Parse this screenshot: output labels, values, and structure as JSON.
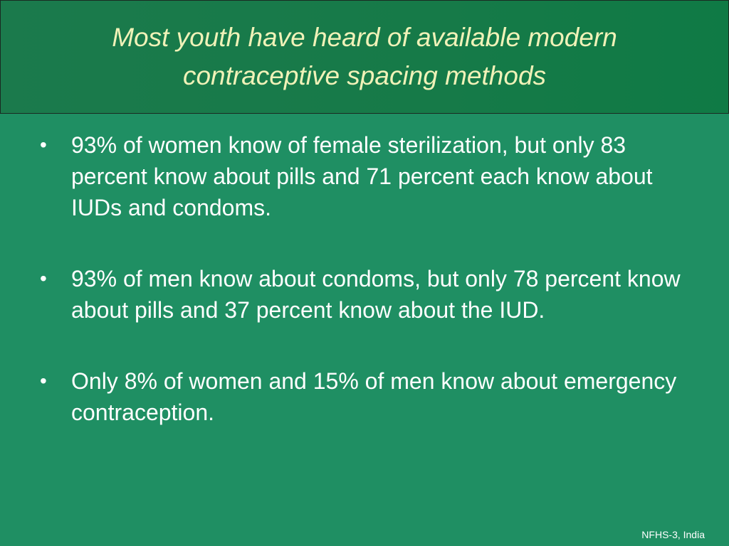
{
  "slide": {
    "title": "Most youth have heard of available modern contraceptive spacing methods",
    "bullets": [
      " 93% of women know of female sterilization, but only 83 percent know about pills and 71 percent each know about IUDs and condoms.",
      "93% of men know about condoms, but only 78 percent know about pills and 37 percent know about the IUD.",
      "Only 8% of women and 15% of men know about emergency contraception."
    ],
    "bullet_symbol": "•",
    "source": "NFHS-3, India"
  },
  "colors": {
    "background": "#1f8f63",
    "title_bar": "#167a48",
    "title_text": "#f0f2b8",
    "body_text": "#ffffff"
  }
}
